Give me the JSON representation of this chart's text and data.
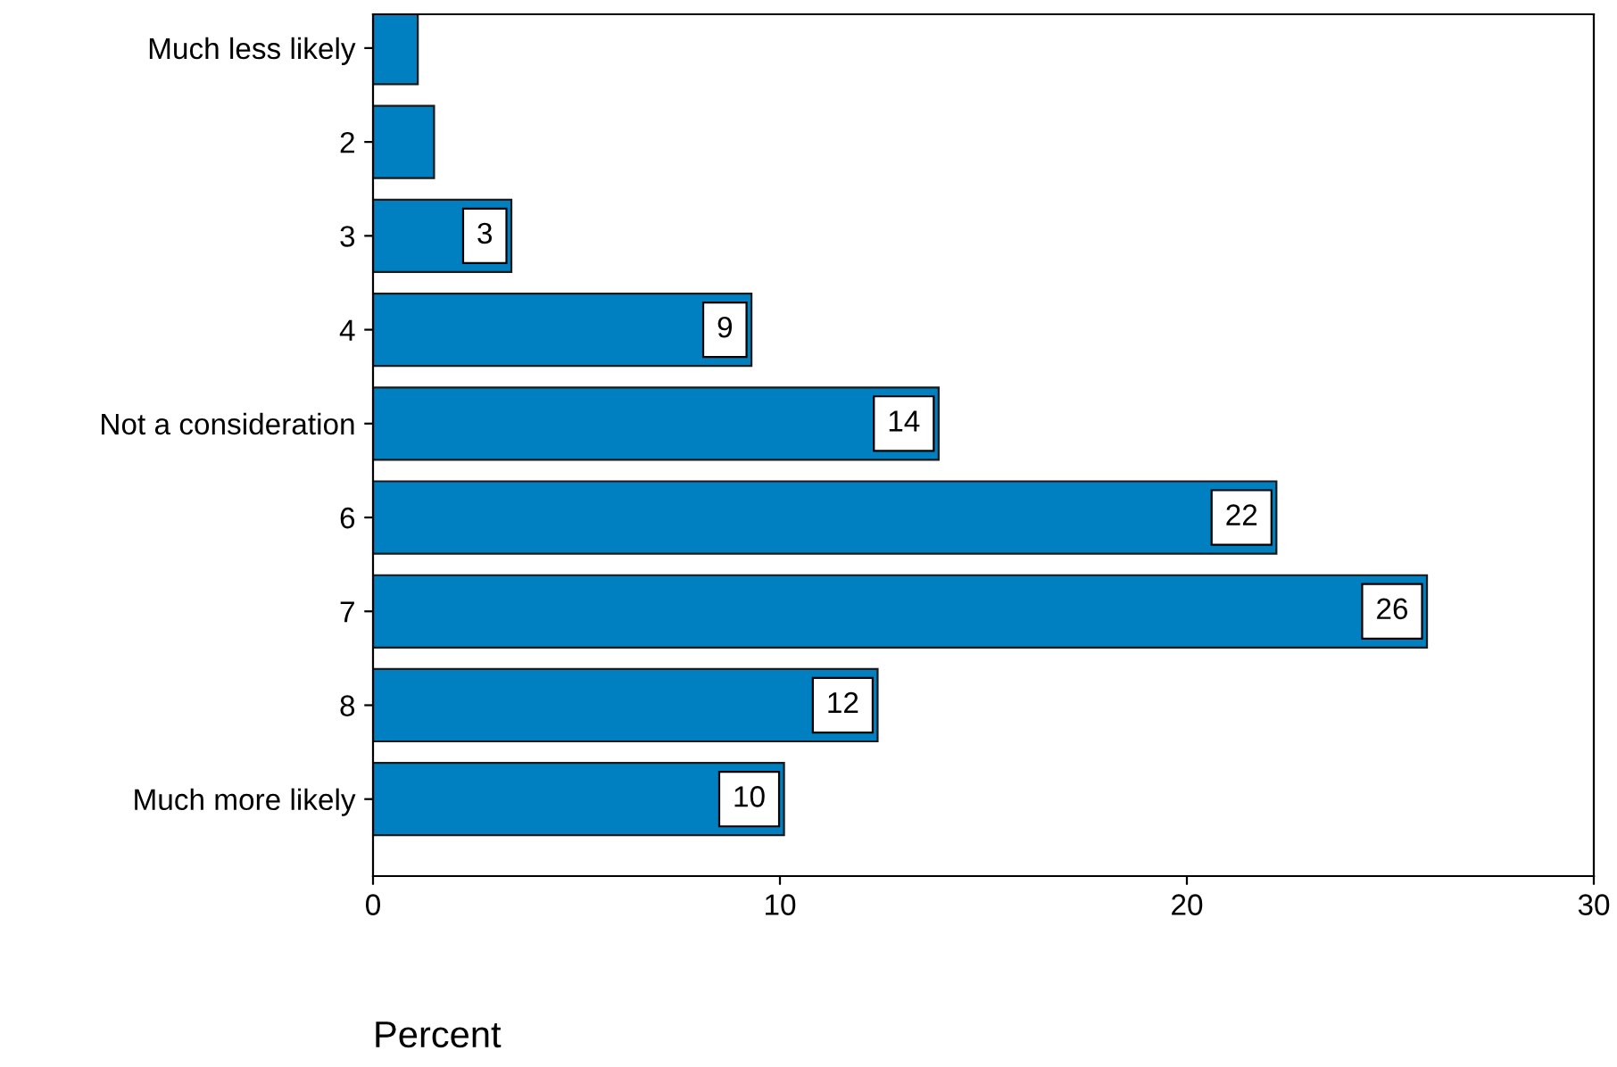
{
  "chart_data": {
    "type": "bar",
    "orientation": "horizontal",
    "xlabel": "Percent",
    "categories": [
      "Much less likely",
      "2",
      "3",
      "4",
      "Not a consideration",
      "6",
      "7",
      "8",
      "Much more likely"
    ],
    "values": [
      1.1,
      1.5,
      3.4,
      9.3,
      13.9,
      22.2,
      25.9,
      12.4,
      10.1
    ],
    "value_labels": [
      null,
      null,
      "3",
      "9",
      "14",
      "22",
      "26",
      "12",
      "10"
    ],
    "color": "#0080c0",
    "xlim": [
      0,
      30
    ],
    "xticks": [
      0,
      10,
      20,
      30
    ],
    "grid": false,
    "legend": false
  }
}
